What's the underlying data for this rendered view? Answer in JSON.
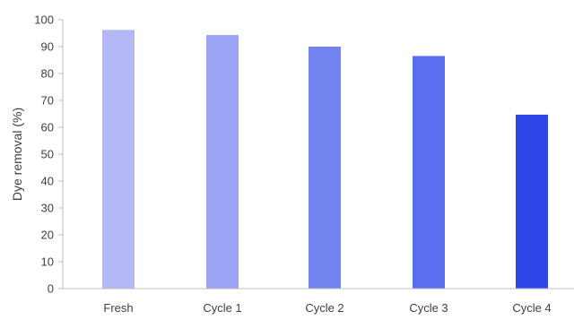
{
  "chart_data": {
    "type": "bar",
    "categories": [
      "Fresh",
      "Cycle 1",
      "Cycle 2",
      "Cycle 3",
      "Cycle 4"
    ],
    "values": [
      96.2,
      94.3,
      90.0,
      86.5,
      64.7
    ],
    "bar_colors": [
      "#b3b8f5",
      "#9ba3f4",
      "#7383f0",
      "#5a6ff0",
      "#2e46e8"
    ],
    "title": "",
    "xlabel": "",
    "ylabel": "Dye removal (%)",
    "ylim": [
      0,
      100
    ],
    "yticks": [
      0,
      10,
      20,
      30,
      40,
      50,
      60,
      70,
      80,
      90,
      100
    ],
    "grid": false,
    "legend": "none"
  }
}
